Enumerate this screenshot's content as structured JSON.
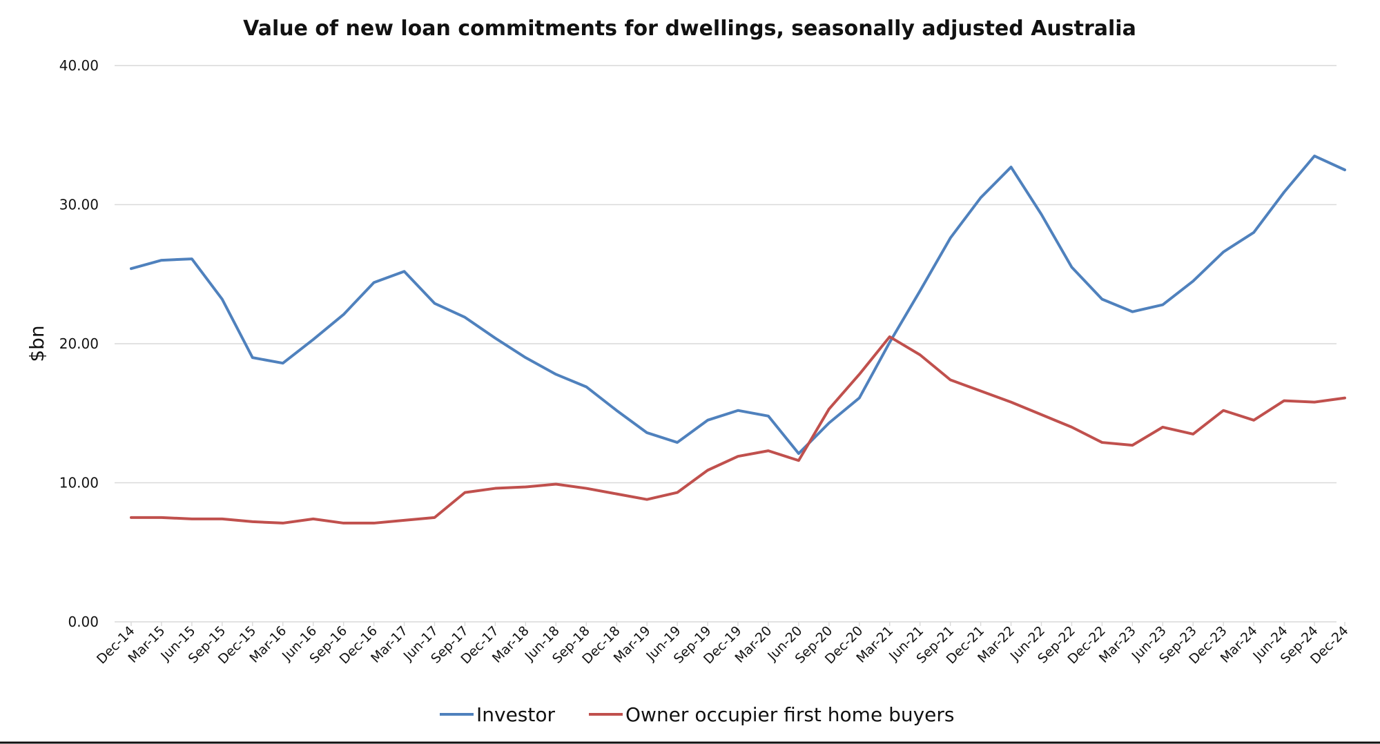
{
  "chart_data": {
    "type": "line",
    "title": "Value of new loan commitments for dwellings, seasonally adjusted Australia",
    "xlabel": "",
    "ylabel": "$bn",
    "ylim": [
      0,
      40
    ],
    "yticks": [
      "0.00",
      "10.00",
      "20.00",
      "30.00",
      "40.00"
    ],
    "categories": [
      "Dec-14",
      "Mar-15",
      "Jun-15",
      "Sep-15",
      "Dec-15",
      "Mar-16",
      "Jun-16",
      "Sep-16",
      "Dec-16",
      "Mar-17",
      "Jun-17",
      "Sep-17",
      "Dec-17",
      "Mar-18",
      "Jun-18",
      "Sep-18",
      "Dec-18",
      "Mar-19",
      "Jun-19",
      "Sep-19",
      "Dec-19",
      "Mar-20",
      "Jun-20",
      "Sep-20",
      "Dec-20",
      "Mar-21",
      "Jun-21",
      "Sep-21",
      "Dec-21",
      "Mar-22",
      "Jun-22",
      "Sep-22",
      "Dec-22",
      "Mar-23",
      "Jun-23",
      "Sep-23",
      "Dec-23",
      "Mar-24",
      "Jun-24",
      "Sep-24",
      "Dec-24"
    ],
    "series": [
      {
        "name": "Investor",
        "color": "#4f81bd",
        "values": [
          25.4,
          26.0,
          26.1,
          23.2,
          19.0,
          18.6,
          20.3,
          22.1,
          24.4,
          25.2,
          22.9,
          21.9,
          20.4,
          19.0,
          17.8,
          16.9,
          15.2,
          13.6,
          12.9,
          14.5,
          15.2,
          14.8,
          12.1,
          14.3,
          16.1,
          20.1,
          23.8,
          27.6,
          30.5,
          32.7,
          29.3,
          25.5,
          23.2,
          22.3,
          22.8,
          24.5,
          26.6,
          28.0,
          30.9,
          33.5,
          32.5
        ]
      },
      {
        "name": "Owner occupier first home buyers",
        "color": "#c0504d",
        "values": [
          7.5,
          7.5,
          7.4,
          7.4,
          7.2,
          7.1,
          7.4,
          7.1,
          7.1,
          7.3,
          7.5,
          9.3,
          9.6,
          9.7,
          9.9,
          9.6,
          9.2,
          8.8,
          9.3,
          10.9,
          11.9,
          12.3,
          11.6,
          15.3,
          17.8,
          20.5,
          19.2,
          17.4,
          16.6,
          15.8,
          14.9,
          14.0,
          12.9,
          12.7,
          14.0,
          13.5,
          15.2,
          14.5,
          15.9,
          15.8,
          16.1
        ]
      }
    ],
    "grid": true,
    "legend_position": "bottom"
  }
}
